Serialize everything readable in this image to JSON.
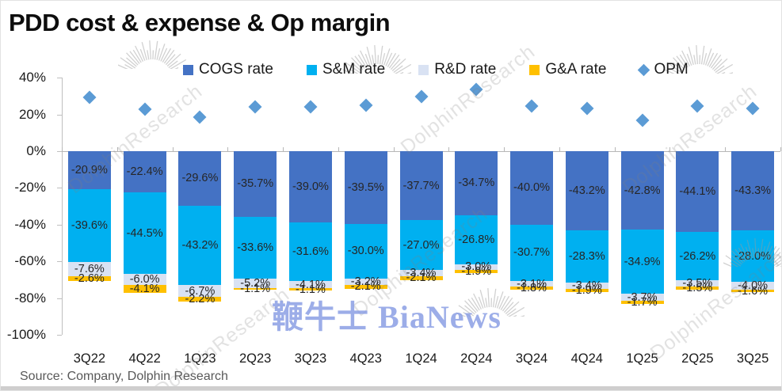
{
  "title": "PDD cost & expense & Op margin",
  "source": "Source: Company,  Dolphin Research",
  "watermarks": {
    "center_text": "鞭牛士 BiaNews",
    "center_color": "#8B9FE4",
    "diagonal_text": "DolphinResearch"
  },
  "legend": {
    "items": [
      {
        "key": "cogs",
        "label": "COGS rate",
        "marker": "square",
        "color": "#4472C4"
      },
      {
        "key": "sm",
        "label": "S&M rate",
        "marker": "square",
        "color": "#00B0F0"
      },
      {
        "key": "rd",
        "label": "R&D rate",
        "marker": "square",
        "color": "#D9E2F3"
      },
      {
        "key": "ga",
        "label": "G&A rate",
        "marker": "square",
        "color": "#FFC000"
      },
      {
        "key": "opm",
        "label": "OPM",
        "marker": "diamond",
        "color": "#5B9BD5"
      }
    ]
  },
  "chart_data": {
    "type": "bar",
    "stacked": true,
    "grid": false,
    "legend_position": "top",
    "ylim": [
      -100,
      40
    ],
    "y_ticks": [
      40,
      20,
      0,
      -20,
      -40,
      -60,
      -80,
      -100
    ],
    "y_tick_suffix": "%",
    "categories": [
      "3Q22",
      "4Q22",
      "1Q23",
      "2Q23",
      "3Q23",
      "4Q23",
      "1Q24",
      "2Q24",
      "3Q24",
      "4Q24",
      "1Q25",
      "2Q25",
      "3Q25"
    ],
    "series": [
      {
        "name": "COGS rate",
        "key": "cogs",
        "kind": "bar",
        "color": "#4472C4",
        "labels_visible": true,
        "values": [
          -20.9,
          -22.4,
          -29.6,
          -35.7,
          -39.0,
          -39.5,
          -37.7,
          -34.7,
          -40.0,
          -43.2,
          -42.8,
          -44.1,
          -43.3
        ]
      },
      {
        "name": "S&M rate",
        "key": "sm",
        "kind": "bar",
        "color": "#00B0F0",
        "labels_visible": true,
        "values": [
          -39.6,
          -44.5,
          -43.2,
          -33.6,
          -31.6,
          -30.0,
          -27.0,
          -26.8,
          -30.7,
          -28.3,
          -34.9,
          -26.2,
          -28.0
        ]
      },
      {
        "name": "R&D rate",
        "key": "rd",
        "kind": "bar",
        "color": "#D9E2F3",
        "labels_visible": true,
        "values": [
          -7.6,
          -6.0,
          -6.7,
          -5.2,
          -4.1,
          -3.2,
          -3.4,
          -3.0,
          -3.1,
          -3.4,
          -3.7,
          -3.5,
          -4.0
        ]
      },
      {
        "name": "G&A rate",
        "key": "ga",
        "kind": "bar",
        "color": "#FFC000",
        "labels_visible": true,
        "values": [
          -2.6,
          -4.1,
          -2.2,
          -1.1,
          -1.1,
          -2.1,
          -2.1,
          -1.9,
          -1.8,
          -1.9,
          -1.7,
          -1.5,
          -1.6
        ]
      },
      {
        "name": "OPM",
        "key": "opm",
        "kind": "scatter-diamond",
        "color": "#5B9BD5",
        "labels_visible": false,
        "values": [
          29.4,
          22.9,
          18.4,
          24.3,
          24.2,
          25.2,
          29.9,
          33.5,
          24.5,
          23.1,
          16.8,
          24.7,
          23.1
        ]
      }
    ]
  }
}
